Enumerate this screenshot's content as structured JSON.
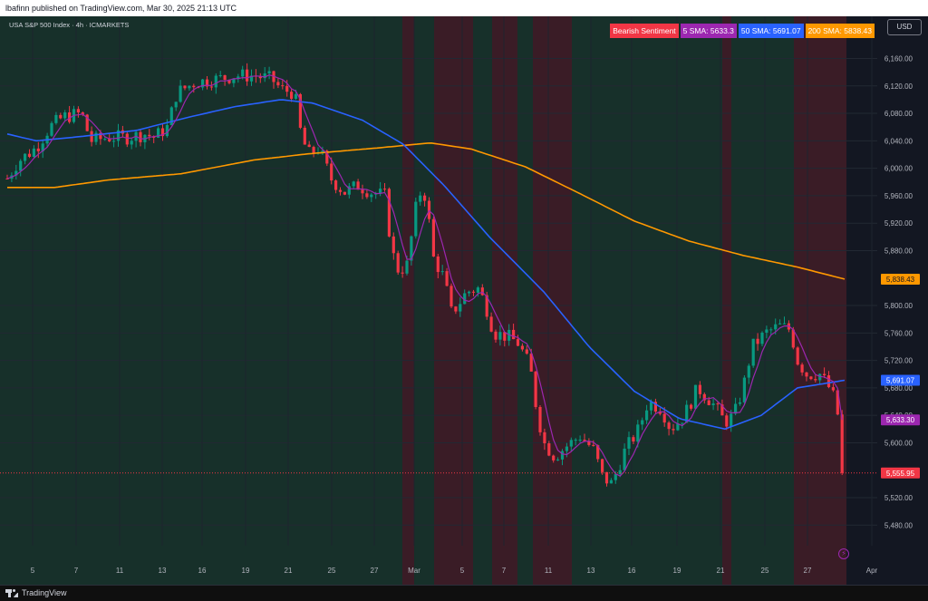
{
  "header": {
    "publisher": "lbafinn published on TradingView.com, Mar 30, 2025 21:13 UTC"
  },
  "footer": {
    "brand": "TradingView"
  },
  "symbol": "USA S&P 500 Index · 4h · ICMARKETS",
  "currency": "USD",
  "legend": [
    {
      "label": "Bearish Sentiment",
      "color": "#f23645"
    },
    {
      "label": "5 SMA: 5633.3",
      "color": "#9c27b0"
    },
    {
      "label": "50 SMA: 5691.07",
      "color": "#2962ff"
    },
    {
      "label": "200 SMA: 5838.43",
      "color": "#ff9800"
    }
  ],
  "chart_data": {
    "type": "candlestick",
    "y_range": [
      5450,
      6195
    ],
    "y_ticks": [
      {
        "value": 6160,
        "label": "6,160.00"
      },
      {
        "value": 6120,
        "label": "6,120.00"
      },
      {
        "value": 6080,
        "label": "6,080.00"
      },
      {
        "value": 6040,
        "label": "6,040.00"
      },
      {
        "value": 6000,
        "label": "6,000.00"
      },
      {
        "value": 5960,
        "label": "5,960.00"
      },
      {
        "value": 5920,
        "label": "5,920.00"
      },
      {
        "value": 5880,
        "label": "5,880.00"
      },
      {
        "value": 5800,
        "label": "5,800.00"
      },
      {
        "value": 5760,
        "label": "5,760.00"
      },
      {
        "value": 5720,
        "label": "5,720.00"
      },
      {
        "value": 5680,
        "label": "5,680.00"
      },
      {
        "value": 5640,
        "label": "5,640.00"
      },
      {
        "value": 5600,
        "label": "5,600.00"
      },
      {
        "value": 5520,
        "label": "5,520.00"
      },
      {
        "value": 5480,
        "label": "5,480.00"
      }
    ],
    "price_labels": [
      {
        "value": 5838.43,
        "label": "5,838.43",
        "color": "#ff9800",
        "text_color": "#131722"
      },
      {
        "value": 5691.07,
        "label": "5,691.07",
        "color": "#2962ff",
        "text_color": "#ffffff"
      },
      {
        "value": 5633.3,
        "label": "5,633.30",
        "color": "#9c27b0",
        "text_color": "#ffffff"
      },
      {
        "value": 5555.95,
        "label": "5,555.95",
        "color": "#f23645",
        "text_color": "#ffffff"
      }
    ],
    "last_price": 5555.95,
    "x_ticks": [
      "5",
      "7",
      "11",
      "13",
      "16",
      "19",
      "21",
      "25",
      "27",
      "Mar",
      "5",
      "7",
      "11",
      "13",
      "16",
      "19",
      "21",
      "25",
      "27",
      "Apr"
    ],
    "bearish_zones": [
      [
        "Feb 28",
        "Feb 28"
      ],
      [
        "Mar 3",
        "Mar 5"
      ],
      [
        "Mar 7",
        "Mar 10"
      ],
      [
        "Mar 10",
        "Mar 12"
      ],
      [
        "Mar 21",
        "Mar 21"
      ],
      [
        "Mar 27",
        "Mar 28"
      ]
    ],
    "series": [
      {
        "name": "5 SMA",
        "color": "#9c27b0",
        "last": 5633.3
      },
      {
        "name": "50 SMA",
        "color": "#2962ff",
        "last": 5691.07
      },
      {
        "name": "200 SMA",
        "color": "#ff9800",
        "last": 5838.43
      }
    ],
    "colors": {
      "up": "#089981",
      "down": "#f23645",
      "bull_zone": "#17302a",
      "bear_zone": "#3a1c26"
    }
  }
}
